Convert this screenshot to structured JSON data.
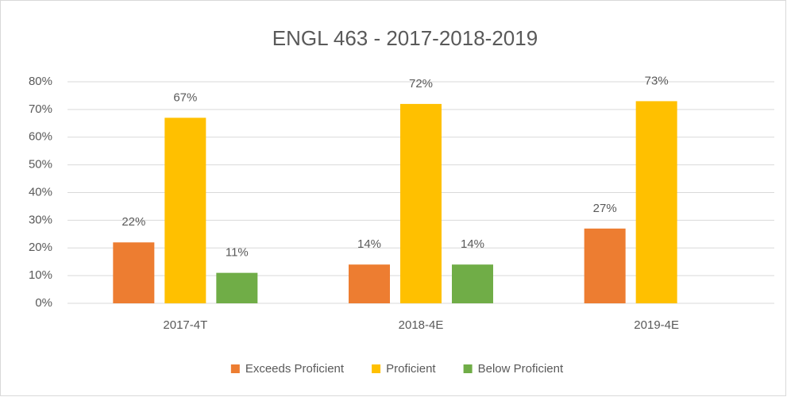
{
  "chart_data": {
    "type": "bar",
    "title": "ENGL 463 - 2017-2018-2019",
    "categories": [
      "2017-4T",
      "2018-4E",
      "2019-4E"
    ],
    "series": [
      {
        "name": "Exceeds Proficient",
        "color": "#ED7D31",
        "values": [
          22,
          14,
          27
        ],
        "value_labels": [
          "22%",
          "14%",
          "27%"
        ]
      },
      {
        "name": "Proficient",
        "color": "#FFC000",
        "values": [
          67,
          72,
          73
        ],
        "value_labels": [
          "67%",
          "72%",
          "73%"
        ]
      },
      {
        "name": "Below Proficient",
        "color": "#70AD47",
        "values": [
          11,
          14,
          null
        ],
        "value_labels": [
          "11%",
          "14%",
          null
        ]
      }
    ],
    "ylim": [
      0,
      80
    ],
    "yticks": [
      {
        "value": 0,
        "label": "0%"
      },
      {
        "value": 10,
        "label": "10%"
      },
      {
        "value": 20,
        "label": "20%"
      },
      {
        "value": 30,
        "label": "30%"
      },
      {
        "value": 40,
        "label": "40%"
      },
      {
        "value": 50,
        "label": "50%"
      },
      {
        "value": 60,
        "label": "60%"
      },
      {
        "value": 70,
        "label": "70%"
      },
      {
        "value": 80,
        "label": "80%"
      }
    ],
    "grid": true,
    "legend": "bottom"
  }
}
